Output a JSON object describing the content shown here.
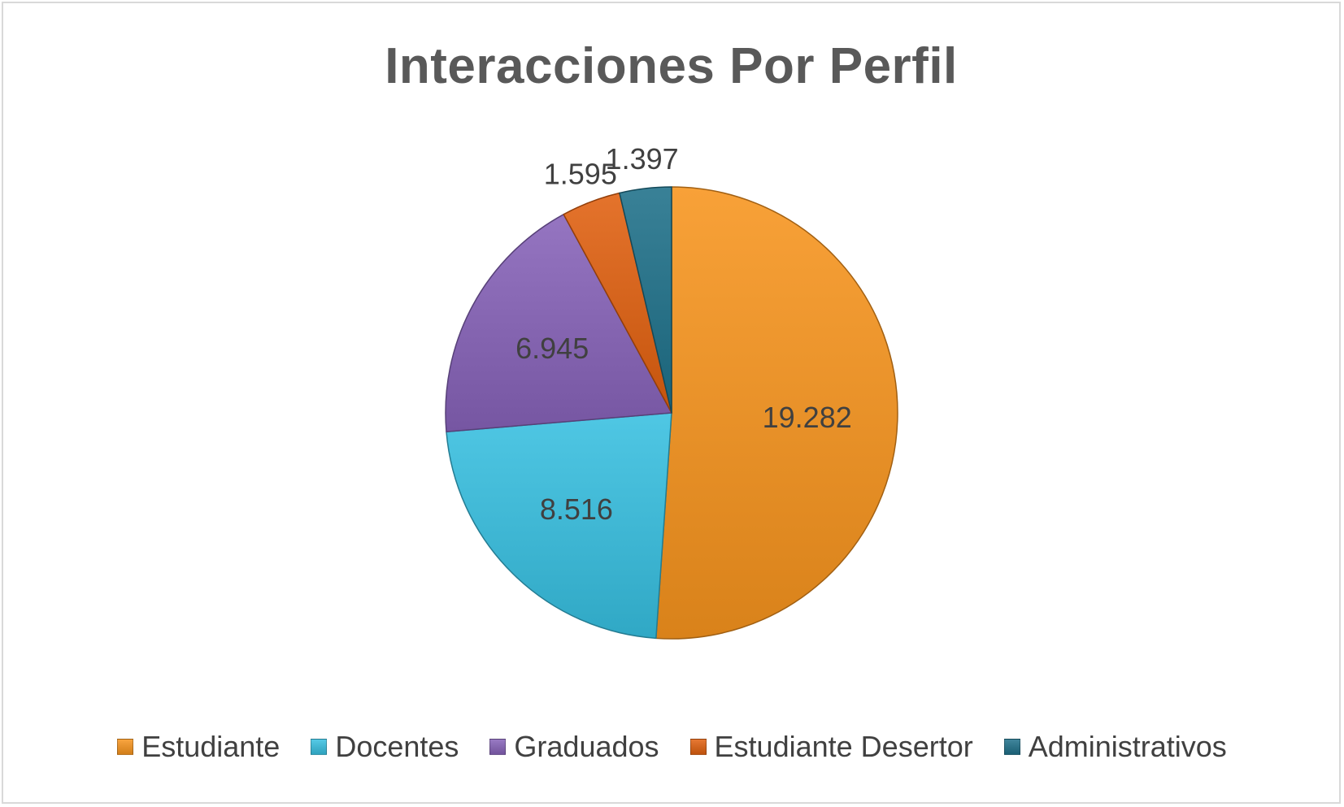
{
  "chart_data": {
    "type": "pie",
    "title": "Interacciones Por Perfil",
    "categories": [
      "Estudiante",
      "Docentes",
      "Graduados",
      "Estudiante Desertor",
      "Administrativos"
    ],
    "values": [
      19282,
      8516,
      6945,
      1595,
      1397
    ],
    "data_labels": [
      "19.282",
      "8.516",
      "6.945",
      "1.595",
      "1.397"
    ],
    "colors": [
      "#F7941D",
      "#37BFE0",
      "#8662B8",
      "#E0600F",
      "#1E7089"
    ],
    "start_angle_deg": 0,
    "direction": "clockwise",
    "legend_position": "bottom"
  }
}
